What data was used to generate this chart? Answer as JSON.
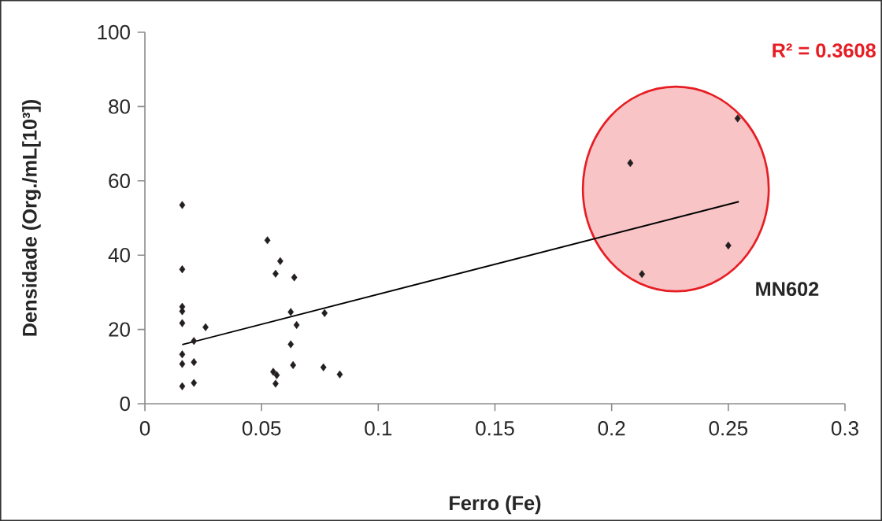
{
  "chart_data": {
    "type": "scatter",
    "xlabel": "Ferro (Fe)",
    "ylabel": "Densidade (Org./mL[10³])",
    "xlim": [
      0,
      0.3
    ],
    "xticks": [
      0,
      0.05,
      0.1,
      0.15,
      0.2,
      0.25,
      0.3
    ],
    "ylim": [
      0,
      100
    ],
    "yticks": [
      0,
      20,
      40,
      60,
      80,
      100
    ],
    "grid": false,
    "marker": "diamond",
    "series": [
      {
        "color": "#231f20",
        "x": [
          0.016,
          0.016,
          0.016,
          0.016,
          0.016,
          0.026,
          0.021,
          0.016,
          0.016,
          0.021,
          0.016,
          0.021,
          0.0525,
          0.058,
          0.056,
          0.064,
          0.0625,
          0.077,
          0.065,
          0.0625,
          0.0635,
          0.0765,
          0.0835,
          0.055,
          0.0565,
          0.056,
          0.254,
          0.208,
          0.25,
          0.213
        ],
        "values": [
          53.5,
          36.2,
          26.1,
          24.9,
          21.7,
          20.6,
          16.9,
          13.3,
          10.7,
          11.2,
          4.7,
          5.6,
          44.0,
          38.4,
          35.0,
          34.0,
          24.7,
          24.4,
          21.2,
          16.0,
          10.4,
          9.8,
          7.9,
          8.6,
          7.7,
          5.4,
          76.8,
          64.8,
          42.6,
          34.9
        ]
      },
      {
        "type": "line",
        "color": "#000000",
        "marker": "none",
        "x": [
          0.016,
          0.2545
        ],
        "values": [
          15.9,
          54.4
        ]
      }
    ],
    "annotations": [
      "R² = 0.3608",
      "MN602"
    ]
  }
}
